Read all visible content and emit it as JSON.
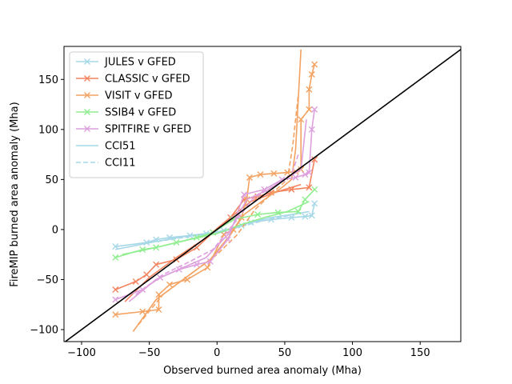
{
  "chart_data": {
    "type": "line",
    "title": "",
    "xlabel": "Observed burned area anomaly (Mha)",
    "ylabel": "FireMIP burned area anomaly (Mha)",
    "xlim": [
      -113,
      180
    ],
    "ylim": [
      -112,
      183
    ],
    "xticks": [
      -100,
      -50,
      0,
      50,
      100,
      150
    ],
    "yticks": [
      -100,
      -50,
      0,
      50,
      100,
      150
    ],
    "grid": false,
    "legend_position": "top-left",
    "legend": [
      {
        "label": "JULES v GFED",
        "color": "#a6d8e8",
        "style": "solid",
        "marker": "x"
      },
      {
        "label": "CLASSIC v GFED",
        "color": "#f4845f",
        "style": "solid",
        "marker": "x"
      },
      {
        "label": "VISIT v GFED",
        "color": "#f4a261",
        "style": "solid",
        "marker": "x"
      },
      {
        "label": "SSIB4 v GFED",
        "color": "#90ee90",
        "style": "solid",
        "marker": "x"
      },
      {
        "label": "SPITFIRE v GFED",
        "color": "#dda0dd",
        "style": "solid",
        "marker": "x"
      },
      {
        "label": "CCI51",
        "color": "#a6d8e8",
        "style": "solid",
        "marker": "none"
      },
      {
        "label": "CCI11",
        "color": "#a6d8e8",
        "style": "dashed",
        "marker": "none"
      }
    ],
    "reference_line": {
      "x": [
        -113,
        180
      ],
      "y": [
        -113,
        180
      ],
      "color": "#000000"
    },
    "series": [
      {
        "model": "JULES",
        "obs": "GFED",
        "color": "#a6d8e8",
        "dashed": false,
        "marker": true,
        "x": [
          -75,
          -52,
          -45,
          -35,
          -20,
          -8,
          5,
          18,
          25,
          40,
          55,
          65,
          70,
          72
        ],
        "y": [
          -17,
          -13,
          -10,
          -8,
          -6,
          -4,
          -1,
          4,
          7,
          10,
          12,
          13,
          14,
          26
        ]
      },
      {
        "model": "JULES",
        "obs": "CCI51",
        "color": "#a6d8e8",
        "dashed": false,
        "marker": false,
        "x": [
          -75,
          -45,
          -20,
          0,
          10,
          20,
          30,
          40,
          50,
          60,
          68
        ],
        "y": [
          -20,
          -12,
          -6,
          -3,
          0,
          5,
          9,
          12,
          14,
          16,
          18
        ]
      },
      {
        "model": "JULES",
        "obs": "CCI11",
        "color": "#a6d8e8",
        "dashed": true,
        "marker": false,
        "x": [
          -55,
          -30,
          -10,
          5,
          20,
          35,
          50,
          62
        ],
        "y": [
          -14,
          -9,
          -5,
          -2,
          4,
          9,
          13,
          17
        ]
      },
      {
        "model": "CLASSIC",
        "obs": "GFED",
        "color": "#f4845f",
        "dashed": false,
        "marker": true,
        "x": [
          -75,
          -60,
          -52,
          -45,
          -30,
          -15,
          -3,
          10,
          20,
          30,
          40,
          55,
          68,
          72
        ],
        "y": [
          -60,
          -52,
          -45,
          -35,
          -30,
          -18,
          -3,
          12,
          30,
          33,
          37,
          40,
          42,
          70
        ]
      },
      {
        "model": "CLASSIC",
        "obs": "CCI51",
        "color": "#f4845f",
        "dashed": false,
        "marker": false,
        "x": [
          -68,
          -50,
          -30,
          -10,
          8,
          25,
          45,
          62
        ],
        "y": [
          -72,
          -48,
          -28,
          -10,
          10,
          28,
          38,
          45
        ]
      },
      {
        "model": "VISIT",
        "obs": "GFED",
        "color": "#f4a261",
        "dashed": false,
        "marker": true,
        "x": [
          -75,
          -55,
          -43,
          -43,
          -35,
          -22,
          -7,
          5,
          12,
          18,
          22,
          24,
          32,
          42,
          52,
          58,
          62,
          62,
          68,
          68,
          70,
          72
        ],
        "y": [
          -85,
          -82,
          -80,
          -65,
          -55,
          -50,
          -38,
          -5,
          0,
          12,
          30,
          52,
          55,
          56,
          57,
          58,
          60,
          110,
          120,
          140,
          155,
          165
        ]
      },
      {
        "model": "VISIT",
        "obs": "CCI51",
        "color": "#f4a261",
        "dashed": false,
        "marker": false,
        "x": [
          -62,
          -45,
          -25,
          -5,
          10,
          20,
          35,
          48,
          55,
          58,
          62
        ],
        "y": [
          -102,
          -70,
          -50,
          -30,
          -5,
          15,
          30,
          42,
          50,
          80,
          180
        ]
      },
      {
        "model": "VISIT",
        "obs": "CCI11",
        "color": "#f4a261",
        "dashed": true,
        "marker": false,
        "x": [
          -58,
          -40,
          -20,
          0,
          15,
          28,
          42,
          52,
          56,
          60
        ],
        "y": [
          -95,
          -65,
          -45,
          -25,
          -5,
          20,
          38,
          50,
          85,
          135
        ]
      },
      {
        "model": "SSIB4",
        "obs": "GFED",
        "color": "#90ee90",
        "dashed": false,
        "marker": true,
        "x": [
          -75,
          -55,
          -45,
          -30,
          -15,
          -3,
          12,
          30,
          45,
          60,
          65,
          72
        ],
        "y": [
          -28,
          -20,
          -18,
          -13,
          -8,
          -3,
          10,
          15,
          17,
          18,
          30,
          40
        ]
      },
      {
        "model": "SSIB4",
        "obs": "CCI51",
        "color": "#90ee90",
        "dashed": false,
        "marker": false,
        "x": [
          -70,
          -45,
          -20,
          0,
          18,
          35,
          52,
          68
        ],
        "y": [
          -25,
          -18,
          -10,
          -4,
          5,
          12,
          18,
          28
        ]
      },
      {
        "model": "SPITFIRE",
        "obs": "GFED",
        "color": "#dda0dd",
        "dashed": false,
        "marker": true,
        "x": [
          -75,
          -55,
          -42,
          -28,
          -15,
          -5,
          8,
          20,
          35,
          48,
          58,
          65,
          68,
          70,
          72
        ],
        "y": [
          -70,
          -60,
          -48,
          -40,
          -35,
          -32,
          -10,
          35,
          40,
          50,
          52,
          55,
          57,
          100,
          120
        ]
      },
      {
        "model": "SPITFIRE",
        "obs": "CCI51",
        "color": "#dda0dd",
        "dashed": false,
        "marker": false,
        "x": [
          -65,
          -45,
          -25,
          -8,
          8,
          22,
          38,
          52,
          62,
          66
        ],
        "y": [
          -72,
          -50,
          -38,
          -28,
          -5,
          30,
          40,
          52,
          60,
          110
        ]
      },
      {
        "model": "SPITFIRE",
        "obs": "CCI11",
        "color": "#dda0dd",
        "dashed": true,
        "marker": false,
        "x": [
          -60,
          -40,
          -20,
          -3,
          12,
          26,
          40,
          55,
          60
        ],
        "y": [
          -65,
          -45,
          -32,
          -20,
          5,
          30,
          42,
          55,
          75
        ]
      }
    ]
  }
}
